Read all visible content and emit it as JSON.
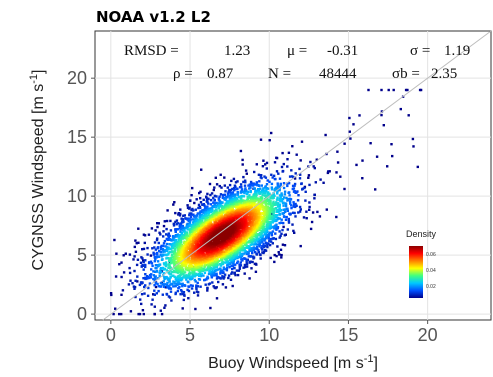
{
  "chart_data": {
    "type": "scatter",
    "title": "NOAA v1.2 L2",
    "xlabel": "Buoy Windspeed [m s",
    "xlabel_sup": "-1",
    "xlabel_end": "]",
    "ylabel": "CYGNSS Windspeed [m s",
    "ylabel_sup": "-1",
    "ylabel_end": "]",
    "xlim": [
      -1,
      24
    ],
    "ylim": [
      -0.5,
      24
    ],
    "xticks": [
      0,
      5,
      10,
      15,
      20
    ],
    "yticks": [
      0,
      5,
      10,
      15,
      20
    ],
    "grid": true,
    "reference_line": "1:1",
    "density_center": {
      "x": 7,
      "y": 6.7
    },
    "density_spread": {
      "major": 3.0,
      "minor": 1.2
    },
    "point_range": {
      "x": [
        0,
        20
      ],
      "y": [
        0,
        19
      ]
    },
    "stats": {
      "rmsd_label": "RMSD =",
      "rmsd_value": "1.23",
      "mu_label": "μ =",
      "mu_value": "-0.31",
      "sigma_label": "σ =",
      "sigma_value": "1.19",
      "rho_label": "ρ =",
      "rho_value": "0.87",
      "n_label": "N =",
      "n_value": "48444",
      "sigmab_label": "σb =",
      "sigmab_value": "2.35"
    },
    "legend": {
      "title": "Density",
      "ticks": [
        "0.06",
        "0.04",
        "0.02"
      ],
      "tick_values": [
        0.06,
        0.04,
        0.02
      ],
      "range": [
        0.005,
        0.07
      ],
      "placement": "bottom-right",
      "colors": [
        "#00008b",
        "#0050ff",
        "#00c8ff",
        "#40ff80",
        "#ffff00",
        "#ff8000",
        "#ff0000",
        "#8b0000"
      ]
    }
  }
}
